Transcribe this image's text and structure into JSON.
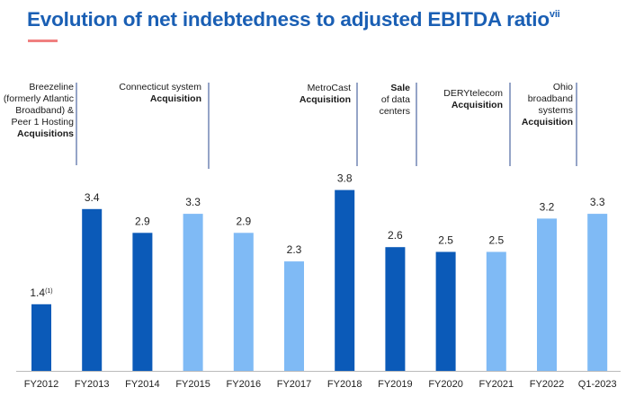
{
  "title": {
    "text": "Evolution of net indebtedness to adjusted EBITDA ratio",
    "superscript": "vii"
  },
  "annotations": [
    {
      "normal": [
        "Breezeline",
        "(formerly Atlantic",
        "Broadband) &",
        "Peer 1 Hosting"
      ],
      "bold": [
        "Acquisitions"
      ]
    },
    {
      "normal": [
        "Connecticut system"
      ],
      "bold": [
        "Acquisition"
      ]
    },
    {
      "normal": [
        "MetroCast"
      ],
      "bold": [
        "Acquisition"
      ]
    },
    {
      "normal": [],
      "bold": [
        "Sale"
      ],
      "after": [
        "of data",
        "centers"
      ]
    },
    {
      "normal": [
        "DERYtelecom"
      ],
      "bold": [
        "Acquisition"
      ]
    },
    {
      "normal": [
        "Ohio",
        "broadband",
        "systems"
      ],
      "bold": [
        "Acquisition"
      ]
    }
  ],
  "colors": {
    "dark": "#0b5ab8",
    "light": "#7fbaf5",
    "title": "#1a5fb4",
    "accent": "#f08080"
  },
  "chart_data": {
    "type": "bar",
    "categories": [
      "FY2012",
      "FY2013",
      "FY2014",
      "FY2015",
      "FY2016",
      "FY2017",
      "FY2018",
      "FY2019",
      "FY2020",
      "FY2021",
      "FY2022",
      "Q1-2023"
    ],
    "values": [
      1.4,
      3.4,
      2.9,
      3.3,
      2.9,
      2.3,
      3.8,
      2.6,
      2.5,
      2.5,
      3.2,
      3.3
    ],
    "value_labels": [
      "1.4",
      "3.4",
      "2.9",
      "3.3",
      "2.9",
      "2.3",
      "3.8",
      "2.6",
      "2.5",
      "2.5",
      "3.2",
      "3.3"
    ],
    "footnote_marks": [
      "(1)",
      "",
      "",
      "",
      "",
      "",
      "",
      "",
      "",
      "",
      "",
      ""
    ],
    "shades": [
      "dark",
      "dark",
      "dark",
      "light",
      "light",
      "light",
      "dark",
      "dark",
      "dark",
      "light",
      "light",
      "light"
    ],
    "ylim": [
      0,
      4
    ],
    "grid": false,
    "legend": "none"
  }
}
